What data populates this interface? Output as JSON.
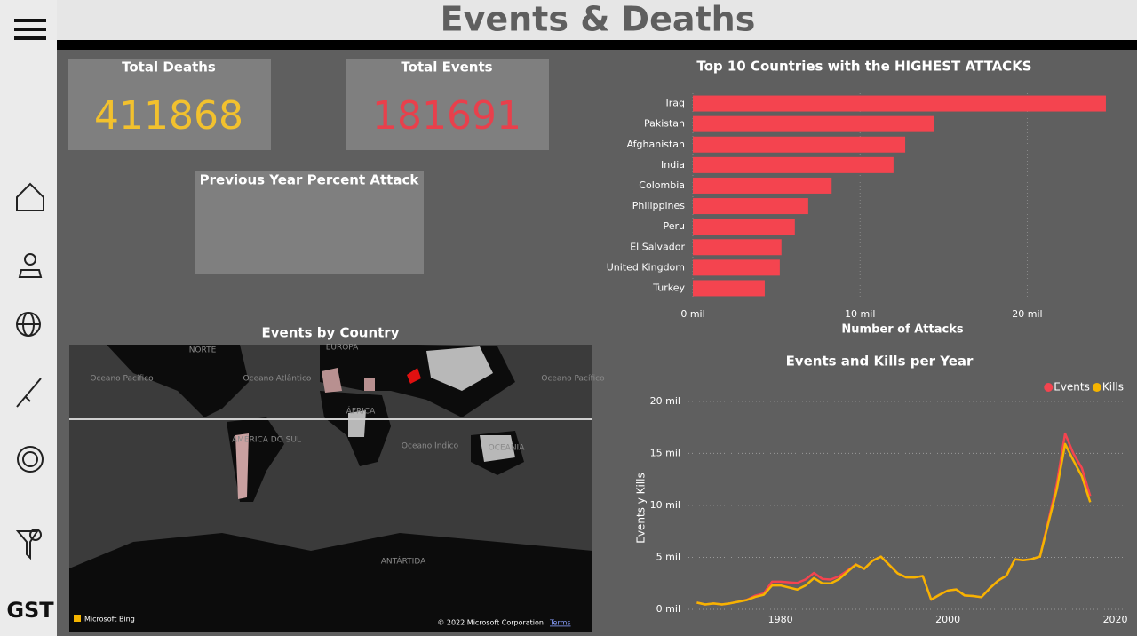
{
  "header": {
    "title": "Events & Deaths",
    "logo": "GST"
  },
  "cards": [
    {
      "title": "Total Deaths",
      "value": 411868,
      "color": "#f2c12e"
    },
    {
      "title": "Total Events",
      "value": 181691,
      "color": "#e8404c"
    },
    {
      "title": "Previous Year Percent Attack"
    }
  ],
  "map": {
    "title": "Events by Country",
    "labels": [
      "NORTE",
      "EUROPA",
      "Oceano Pacífico",
      "Oceano Atlântico",
      "Oceano Pacífico",
      "ÁFRICA",
      "AMÉRICA DO SUL",
      "Oceano Índico",
      "OCEANIA",
      "ANTÁRTIDA"
    ],
    "brand": "Microsoft Bing",
    "copyright": "© 2022 Microsoft Corporation",
    "terms": "Terms"
  },
  "chart_data": [
    {
      "type": "hbar",
      "title": "Top 10 Countries with the HIGHEST ATTACKS",
      "x_label": "Number of Attacks",
      "color": "#f4444f",
      "categories": [
        "Iraq",
        "Pakistan",
        "Afghanistan",
        "India",
        "Colombia",
        "Philippines",
        "Peru",
        "El Salvador",
        "United Kingdom",
        "Turkey"
      ],
      "values": [
        24.7,
        14.4,
        12.7,
        12.0,
        8.3,
        6.9,
        6.1,
        5.3,
        5.2,
        4.3
      ],
      "xlim": [
        0,
        25.5
      ],
      "xticks": [
        {
          "value": 0,
          "label": "0 mil"
        },
        {
          "value": 10,
          "label": "10 mil"
        },
        {
          "value": 20,
          "label": "20 mil"
        }
      ],
      "grid": true
    },
    {
      "type": "line",
      "title": "Events and Kills per Year",
      "y_label": "Events y Kills",
      "legend": "top-right",
      "x": [
        1970,
        1971,
        1972,
        1973,
        1974,
        1975,
        1976,
        1977,
        1978,
        1979,
        1980,
        1981,
        1982,
        1983,
        1984,
        1985,
        1986,
        1987,
        1988,
        1989,
        1990,
        1991,
        1992,
        1994,
        1995,
        1996,
        1997,
        1998,
        1999,
        2000,
        2001,
        2002,
        2003,
        2004,
        2005,
        2006,
        2007,
        2008,
        2009,
        2010,
        2011,
        2012,
        2013,
        2014,
        2015,
        2016,
        2017
      ],
      "series": [
        {
          "name": "Events",
          "color": "#f4444f",
          "values": [
            0.65,
            0.47,
            0.57,
            0.47,
            0.58,
            0.74,
            0.92,
            1.32,
            1.53,
            2.66,
            2.66,
            2.59,
            2.54,
            2.87,
            3.5,
            2.92,
            2.86,
            3.18,
            3.72,
            4.32,
            3.89,
            4.68,
            5.07,
            3.46,
            3.08,
            3.06,
            3.2,
            0.93,
            1.4,
            1.81,
            1.91,
            1.33,
            1.28,
            1.17,
            2.02,
            2.76,
            3.24,
            4.81,
            4.72,
            4.83,
            5.08,
            8.52,
            12.04,
            16.9,
            14.97,
            13.59,
            10.9
          ]
        },
        {
          "name": "Kills",
          "color": "#f5b400",
          "values": [
            0.65,
            0.47,
            0.57,
            0.47,
            0.58,
            0.74,
            0.9,
            1.2,
            1.4,
            2.3,
            2.3,
            2.1,
            1.9,
            2.3,
            3.0,
            2.5,
            2.5,
            2.9,
            3.6,
            4.3,
            3.89,
            4.68,
            5.07,
            3.46,
            3.08,
            3.06,
            3.2,
            0.93,
            1.4,
            1.81,
            1.91,
            1.33,
            1.28,
            1.17,
            2.02,
            2.76,
            3.24,
            4.81,
            4.72,
            4.83,
            5.08,
            8.3,
            11.5,
            15.9,
            14.3,
            12.8,
            10.3
          ]
        }
      ],
      "xlim": [
        1969,
        2021
      ],
      "xticks": [
        1980,
        2000,
        2020
      ],
      "ylim": [
        0,
        20.5
      ],
      "yticks": [
        {
          "value": 0,
          "label": "0 mil"
        },
        {
          "value": 5,
          "label": "5 mil"
        },
        {
          "value": 10,
          "label": "10 mil"
        },
        {
          "value": 15,
          "label": "15 mil"
        },
        {
          "value": 20,
          "label": "20 mil"
        }
      ],
      "grid": true
    }
  ]
}
